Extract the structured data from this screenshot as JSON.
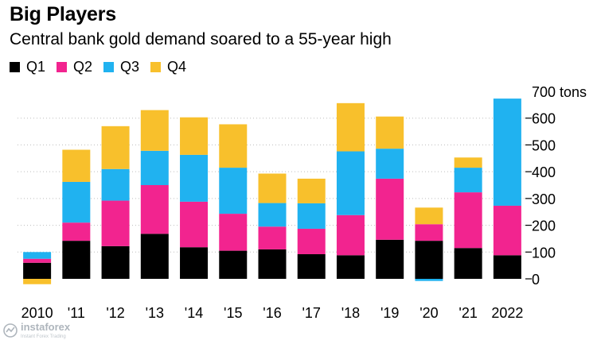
{
  "title": "Big Players",
  "subtitle": "Central bank gold demand soared to a 55-year high",
  "colors": {
    "Q1": "#000000",
    "Q2": "#f2248f",
    "Q3": "#20b2f0",
    "Q4": "#f8c02c",
    "grid": "#bdbdbd"
  },
  "watermark": {
    "name": "instaforex",
    "tagline": "Instant Forex Trading"
  },
  "chart_data": {
    "type": "bar",
    "stacked": true,
    "title": "Big Players",
    "subtitle": "Central bank gold demand soared to a 55-year high",
    "categories": [
      "2010",
      "'11",
      "'12",
      "'13",
      "'14",
      "'15",
      "'16",
      "'17",
      "'18",
      "'19",
      "'20",
      "'21",
      "2022"
    ],
    "series": [
      {
        "name": "Q1",
        "values": [
          60,
          142,
          122,
          168,
          118,
          105,
          110,
          92,
          88,
          146,
          142,
          115,
          88
        ]
      },
      {
        "name": "Q2",
        "values": [
          15,
          68,
          170,
          182,
          170,
          138,
          85,
          95,
          150,
          228,
          62,
          208,
          185
        ]
      },
      {
        "name": "Q3",
        "values": [
          25,
          152,
          118,
          128,
          175,
          172,
          88,
          95,
          238,
          112,
          -8,
          92,
          400
        ]
      },
      {
        "name": "Q4",
        "values": [
          -20,
          120,
          160,
          152,
          140,
          162,
          110,
          92,
          180,
          120,
          62,
          38,
          0
        ]
      }
    ],
    "yunit": "tons",
    "ylim": [
      0,
      700
    ],
    "yticks": [
      0,
      100,
      200,
      300,
      400,
      500,
      600,
      700
    ],
    "grid": true,
    "legend": "top-left"
  }
}
